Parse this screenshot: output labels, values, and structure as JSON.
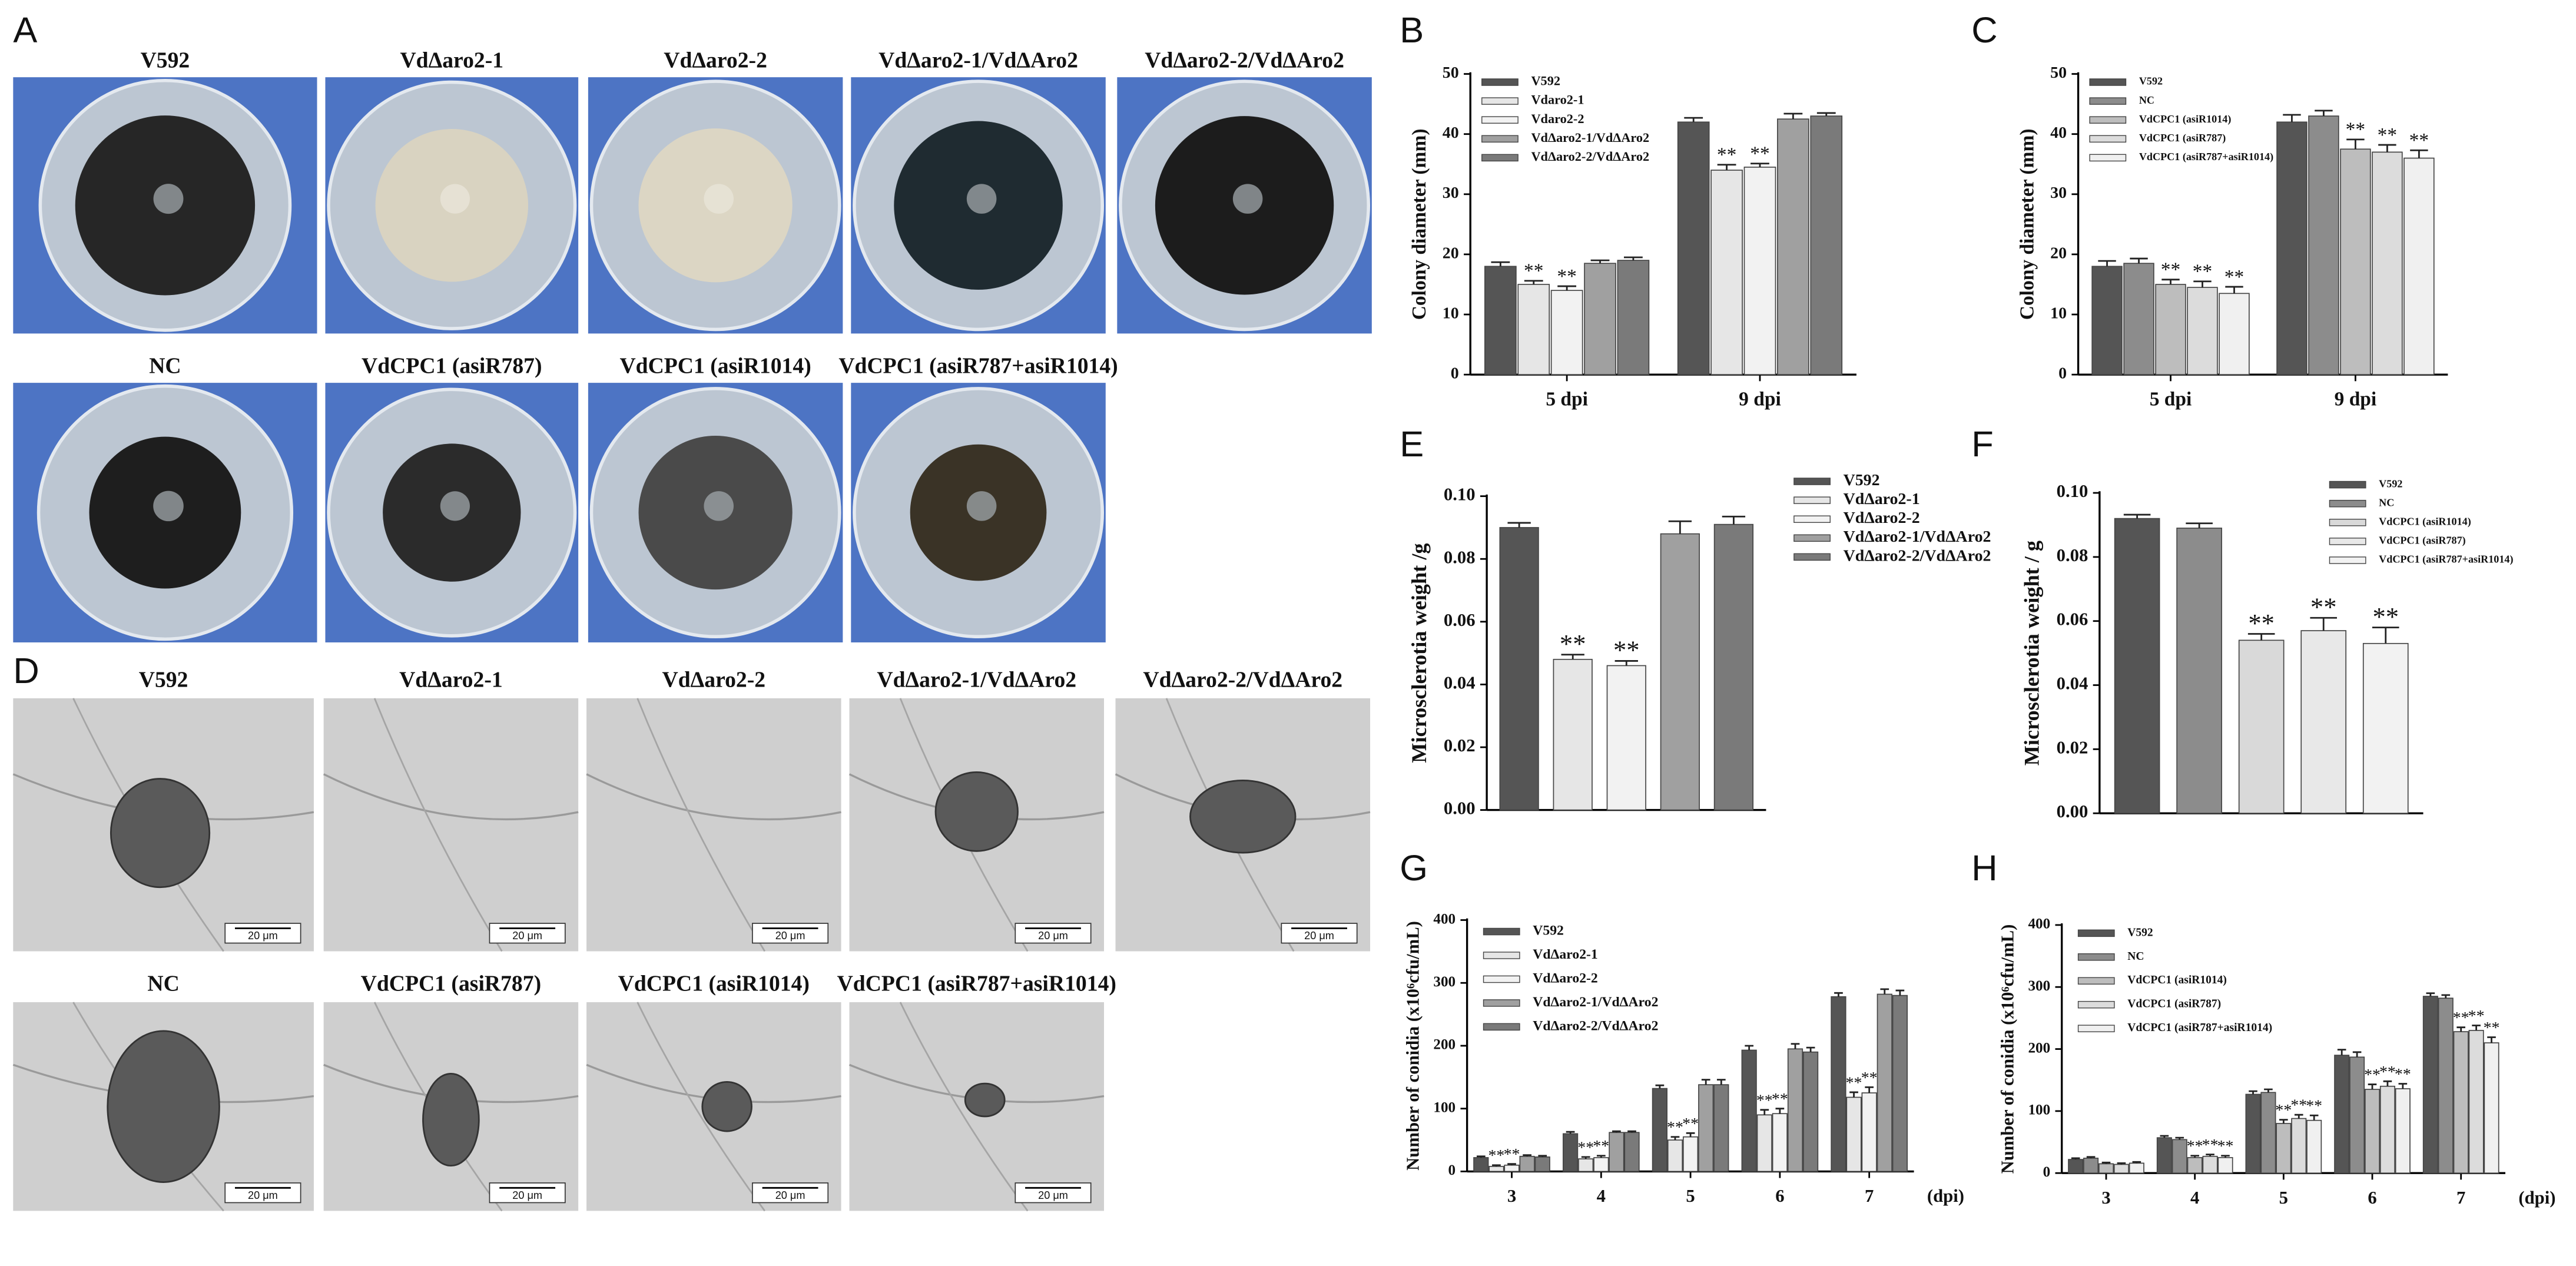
{
  "colony_photos": {
    "label": "A",
    "captions": [
      "V592",
      "VdΔaro2-1",
      "VdΔaro2-2",
      "VdΔaro2-1/VdΔAro2",
      "VdΔaro2-2/VdΔAro2",
      "NC",
      "VdCPC1 (asiR787)",
      "VdCPC1 (asiR1014)",
      "VdCPC1 (asiR787+asiR1014)"
    ]
  },
  "microsclerotia_photos": {
    "label": "D",
    "scale_bar": "20 μm",
    "captions": [
      "V592",
      "VdΔaro2-1",
      "VdΔaro2-2",
      "VdΔaro2-1/VdΔAro2",
      "VdΔaro2-2/VdΔAro2",
      "NC",
      "VdCPC1 (asiR787)",
      "VdCPC1 (asiR1014)",
      "VdCPC1 (asiR787+asiR1014)"
    ]
  },
  "chart_data": [
    {
      "type": "bar",
      "label": "B",
      "ylabel": "Colony diameter (mm)",
      "categories": [
        "5 dpi",
        "9 dpi"
      ],
      "ylim": [
        0,
        50
      ],
      "yticks": [
        0,
        10,
        20,
        30,
        40,
        50
      ],
      "series": [
        {
          "name": "V592",
          "color": "#555555",
          "values": [
            18,
            42
          ],
          "errors": [
            0.7,
            0.7
          ],
          "significance": [
            null,
            null
          ]
        },
        {
          "name": "Vdaro2-1",
          "color": "#e6e6e6",
          "values": [
            15,
            34
          ],
          "errors": [
            0.6,
            0.9
          ],
          "significance": [
            "**",
            "**"
          ]
        },
        {
          "name": "Vdaro2-2",
          "color": "#f2f2f2",
          "values": [
            14,
            34.5
          ],
          "errors": [
            0.7,
            0.6
          ],
          "significance": [
            "**",
            "**"
          ]
        },
        {
          "name": "VdΔaro2-1/VdΔAro2",
          "color": "#a0a0a0",
          "values": [
            18.5,
            42.5
          ],
          "errors": [
            0.5,
            0.9
          ],
          "significance": [
            null,
            null
          ]
        },
        {
          "name": "VdΔaro2-2/VdΔAro2",
          "color": "#7a7a7a",
          "values": [
            19,
            43
          ],
          "errors": [
            0.5,
            0.5
          ],
          "significance": [
            null,
            null
          ]
        }
      ]
    },
    {
      "type": "bar",
      "label": "C",
      "ylabel": "Colony diameter (mm)",
      "categories": [
        "5 dpi",
        "9 dpi"
      ],
      "ylim": [
        0,
        50
      ],
      "yticks": [
        0,
        10,
        20,
        30,
        40,
        50
      ],
      "series": [
        {
          "name": "V592",
          "color": "#555555",
          "values": [
            18,
            42
          ],
          "errors": [
            0.9,
            1.2
          ],
          "significance": [
            null,
            null
          ]
        },
        {
          "name": "NC",
          "color": "#8c8c8c",
          "values": [
            18.5,
            43
          ],
          "errors": [
            0.8,
            0.9
          ],
          "significance": [
            null,
            null
          ]
        },
        {
          "name": "VdCPC1 (asiR1014)",
          "color": "#bdbdbd",
          "values": [
            15,
            37.5
          ],
          "errors": [
            0.8,
            1.6
          ],
          "significance": [
            "**",
            "**"
          ]
        },
        {
          "name": "VdCPC1 (asiR787)",
          "color": "#dcdcdc",
          "values": [
            14.5,
            37
          ],
          "errors": [
            1.0,
            1.2
          ],
          "significance": [
            "**",
            "**"
          ]
        },
        {
          "name": "VdCPC1 (asiR787+asiR1014)",
          "color": "#f0f0f0",
          "values": [
            13.5,
            36
          ],
          "errors": [
            1.1,
            1.3
          ],
          "significance": [
            "**",
            "**"
          ]
        }
      ]
    },
    {
      "type": "bar",
      "label": "E",
      "ylabel": "Microsclerotia weight /g",
      "categories": [
        null
      ],
      "ylim": [
        0,
        0.1
      ],
      "yticks": [
        {
          "value": 0,
          "label": "0.00"
        },
        0.02,
        0.04,
        0.06,
        0.08,
        {
          "value": 0.1,
          "label": "0.10"
        }
      ],
      "series": [
        {
          "name": "V592",
          "color": "#555555",
          "values": [
            0.09
          ],
          "errors": [
            0.0015
          ],
          "significance": [
            null
          ]
        },
        {
          "name": "VdΔaro2-1",
          "color": "#e6e6e6",
          "values": [
            0.048
          ],
          "errors": [
            0.0015
          ],
          "significance": [
            "**"
          ]
        },
        {
          "name": "VdΔaro2-2",
          "color": "#f2f2f2",
          "values": [
            0.046
          ],
          "errors": [
            0.0015
          ],
          "significance": [
            "**"
          ]
        },
        {
          "name": "VdΔaro2-1/VdΔAro2",
          "color": "#a0a0a0",
          "values": [
            0.088
          ],
          "errors": [
            0.004
          ],
          "significance": [
            null
          ]
        },
        {
          "name": "VdΔaro2-2/VdΔAro2",
          "color": "#7a7a7a",
          "values": [
            0.091
          ],
          "errors": [
            0.0025
          ],
          "significance": [
            null
          ]
        }
      ]
    },
    {
      "type": "bar",
      "label": "F",
      "ylabel": "Microsclerotia weight / g",
      "categories": [
        null
      ],
      "ylim": [
        0,
        0.1
      ],
      "yticks": [
        {
          "value": 0,
          "label": "0.00"
        },
        0.02,
        0.04,
        0.06,
        0.08,
        {
          "value": 0.1,
          "label": "0.10"
        }
      ],
      "series": [
        {
          "name": "V592",
          "color": "#555555",
          "values": [
            0.092
          ],
          "errors": [
            0.0012
          ],
          "significance": [
            null
          ]
        },
        {
          "name": "NC",
          "color": "#8c8c8c",
          "values": [
            0.089
          ],
          "errors": [
            0.0015
          ],
          "significance": [
            null
          ]
        },
        {
          "name": "VdCPC1 (asiR1014)",
          "color": "#d9d9d9",
          "values": [
            0.054
          ],
          "errors": [
            0.002
          ],
          "significance": [
            "**"
          ]
        },
        {
          "name": "VdCPC1 (asiR787)",
          "color": "#e8e8e8",
          "values": [
            0.057
          ],
          "errors": [
            0.004
          ],
          "significance": [
            "**"
          ]
        },
        {
          "name": "VdCPC1 (asiR787+asiR1014)",
          "color": "#f2f2f2",
          "values": [
            0.053
          ],
          "errors": [
            0.005
          ],
          "significance": [
            "**"
          ]
        }
      ]
    },
    {
      "type": "bar",
      "label": "G",
      "ylabel": "Number of conidia (x10⁶cfu/mL)",
      "xlabel": "(dpi)",
      "categories": [
        "3",
        "4",
        "5",
        "6",
        "7"
      ],
      "ylim": [
        0,
        400
      ],
      "yticks": [
        0,
        100,
        200,
        300,
        400
      ],
      "series": [
        {
          "name": "V592",
          "color": "#555555",
          "values": [
            22,
            60,
            132,
            193,
            278
          ],
          "errors": [
            2,
            3,
            5,
            7,
            6
          ],
          "significance": [
            null,
            null,
            null,
            null,
            null
          ]
        },
        {
          "name": "VdΔaro2-1",
          "color": "#e6e6e6",
          "values": [
            8,
            20,
            50,
            90,
            118
          ],
          "errors": [
            2,
            3,
            5,
            8,
            8
          ],
          "significance": [
            "**",
            "**",
            "**",
            "**",
            "**"
          ]
        },
        {
          "name": "VdΔaro2-2",
          "color": "#f2f2f2",
          "values": [
            10,
            22,
            55,
            92,
            125
          ],
          "errors": [
            2,
            3,
            6,
            8,
            9
          ],
          "significance": [
            "**",
            "**",
            "**",
            "**",
            "**"
          ]
        },
        {
          "name": "VdΔaro2-1/VdΔAro2",
          "color": "#a0a0a0",
          "values": [
            24,
            62,
            138,
            195,
            282
          ],
          "errors": [
            2,
            2,
            8,
            8,
            8
          ],
          "significance": [
            null,
            null,
            null,
            null,
            null
          ]
        },
        {
          "name": "VdΔaro2-2/VdΔAro2",
          "color": "#7a7a7a",
          "values": [
            23,
            62,
            138,
            190,
            280
          ],
          "errors": [
            2,
            2,
            8,
            7,
            8
          ],
          "significance": [
            null,
            null,
            null,
            null,
            null
          ]
        }
      ]
    },
    {
      "type": "bar",
      "label": "H",
      "ylabel": "Number of conidia (x10⁶cfu/mL)",
      "xlabel": "(dpi)",
      "categories": [
        "3",
        "4",
        "5",
        "6",
        "7"
      ],
      "ylim": [
        0,
        400
      ],
      "yticks": [
        0,
        100,
        200,
        300,
        400
      ],
      "series": [
        {
          "name": "V592",
          "color": "#555555",
          "values": [
            22,
            57,
            127,
            190,
            285
          ],
          "errors": [
            2,
            3,
            5,
            9,
            5
          ],
          "significance": [
            null,
            null,
            null,
            null,
            null
          ]
        },
        {
          "name": "NC",
          "color": "#8c8c8c",
          "values": [
            24,
            54,
            130,
            187,
            282
          ],
          "errors": [
            2,
            3,
            5,
            8,
            5
          ],
          "significance": [
            null,
            null,
            null,
            null,
            null
          ]
        },
        {
          "name": "VdCPC1 (asiR1014)",
          "color": "#bdbdbd",
          "values": [
            15,
            25,
            80,
            135,
            228
          ],
          "errors": [
            2,
            3,
            6,
            8,
            7
          ],
          "significance": [
            null,
            "**",
            "**",
            "**",
            "**"
          ]
        },
        {
          "name": "VdCPC1 (asiR787)",
          "color": "#dcdcdc",
          "values": [
            14,
            27,
            88,
            140,
            230
          ],
          "errors": [
            2,
            3,
            6,
            8,
            8
          ],
          "significance": [
            null,
            "**",
            "**",
            "**",
            "**"
          ]
        },
        {
          "name": "VdCPC1 (asiR787+asiR1014)",
          "color": "#f0f0f0",
          "values": [
            16,
            25,
            85,
            136,
            210
          ],
          "errors": [
            2,
            3,
            8,
            8,
            9
          ],
          "significance": [
            null,
            "**",
            "**",
            "**",
            "**"
          ]
        }
      ]
    }
  ]
}
